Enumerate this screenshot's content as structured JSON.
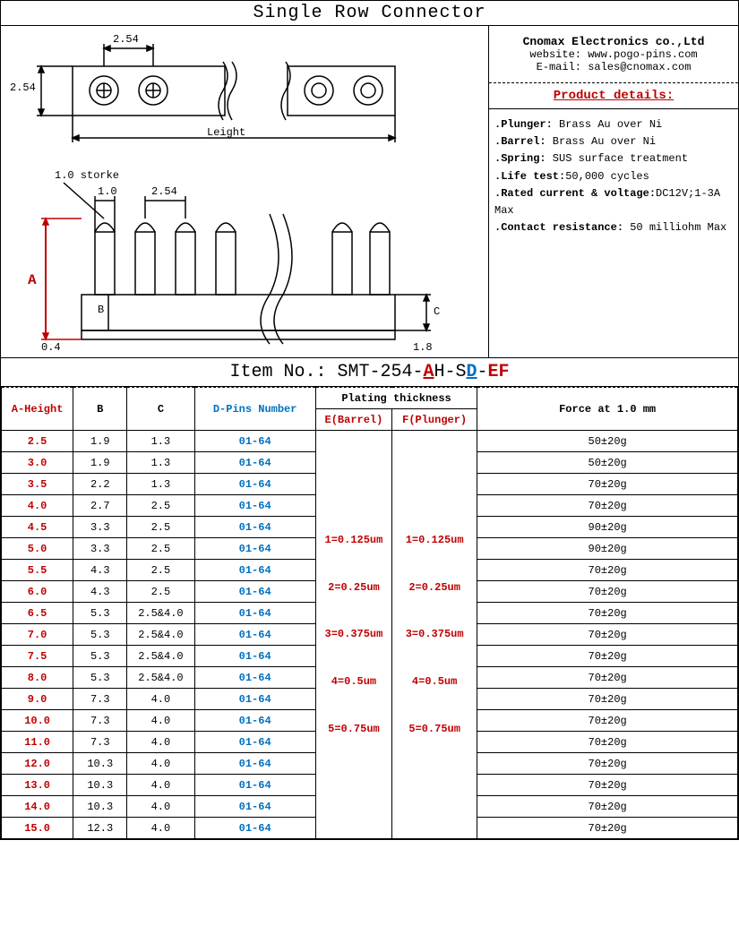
{
  "title": "Single Row Connector",
  "company": {
    "name": "Cnomax Electronics co.,Ltd",
    "website_label": "website:",
    "website": "www.pogo-pins.com",
    "email_label": "E-mail:",
    "email": "sales@cnomax.com"
  },
  "details_header": "Product details:",
  "details": [
    {
      "label": ".Plunger:",
      "value": " Brass Au over Ni"
    },
    {
      "label": ".Barrel:",
      "value": " Brass Au over Ni"
    },
    {
      "label": ".Spring:",
      "value": " SUS surface treatment"
    },
    {
      "label": ".Life test:",
      "value": "50,000 cycles"
    },
    {
      "label": ".Rated current & voltage:",
      "value": "DC12V;1-3A Max"
    },
    {
      "label": ".Contact resistance:",
      "value": " 50 milliohm Max"
    }
  ],
  "item_no": {
    "label": "Item No.:  ",
    "prefix": "SMT-254-",
    "seg_a": "A",
    "mid1": "H-S",
    "seg_d": "D",
    "mid2": "-",
    "seg_ef": "EF"
  },
  "drawing": {
    "dim_254_h": "2.54",
    "dim_254_v": "2.54",
    "length_label": "Leight",
    "stroke_label": "1.0 storke",
    "dim_10": "1.0",
    "dim_254_b": "2.54",
    "label_a": "A",
    "label_b": "B",
    "label_c": "C",
    "dim_04": "0.4",
    "dim_18": "1.8"
  },
  "table": {
    "headers": {
      "a": "A-Height",
      "b": "B",
      "c": "C",
      "d": "D-Pins Number",
      "plating": "Plating thickness",
      "e": "E(Barrel)",
      "f": "F(Plunger)",
      "force": "Force at 1.0 mm"
    },
    "plating_e": "1=0.125um\n\n2=0.25um\n\n3=0.375um\n\n4=0.5um\n\n5=0.75um",
    "plating_f": "1=0.125um\n\n2=0.25um\n\n3=0.375um\n\n4=0.5um\n\n5=0.75um",
    "rows": [
      {
        "a": "2.5",
        "b": "1.9",
        "c": "1.3",
        "d": "01-64",
        "force": "50±20g"
      },
      {
        "a": "3.0",
        "b": "1.9",
        "c": "1.3",
        "d": "01-64",
        "force": "50±20g"
      },
      {
        "a": "3.5",
        "b": "2.2",
        "c": "1.3",
        "d": "01-64",
        "force": "70±20g"
      },
      {
        "a": "4.0",
        "b": "2.7",
        "c": "2.5",
        "d": "01-64",
        "force": "70±20g"
      },
      {
        "a": "4.5",
        "b": "3.3",
        "c": "2.5",
        "d": "01-64",
        "force": "90±20g"
      },
      {
        "a": "5.0",
        "b": "3.3",
        "c": "2.5",
        "d": "01-64",
        "force": "90±20g"
      },
      {
        "a": "5.5",
        "b": "4.3",
        "c": "2.5",
        "d": "01-64",
        "force": "70±20g"
      },
      {
        "a": "6.0",
        "b": "4.3",
        "c": "2.5",
        "d": "01-64",
        "force": "70±20g"
      },
      {
        "a": "6.5",
        "b": "5.3",
        "c": "2.5&4.0",
        "d": "01-64",
        "force": "70±20g"
      },
      {
        "a": "7.0",
        "b": "5.3",
        "c": "2.5&4.0",
        "d": "01-64",
        "force": "70±20g"
      },
      {
        "a": "7.5",
        "b": "5.3",
        "c": "2.5&4.0",
        "d": "01-64",
        "force": "70±20g"
      },
      {
        "a": "8.0",
        "b": "5.3",
        "c": "2.5&4.0",
        "d": "01-64",
        "force": "70±20g"
      },
      {
        "a": "9.0",
        "b": "7.3",
        "c": "4.0",
        "d": "01-64",
        "force": "70±20g"
      },
      {
        "a": "10.0",
        "b": "7.3",
        "c": "4.0",
        "d": "01-64",
        "force": "70±20g"
      },
      {
        "a": "11.0",
        "b": "7.3",
        "c": "4.0",
        "d": "01-64",
        "force": "70±20g"
      },
      {
        "a": "12.0",
        "b": "10.3",
        "c": "4.0",
        "d": "01-64",
        "force": "70±20g"
      },
      {
        "a": "13.0",
        "b": "10.3",
        "c": "4.0",
        "d": "01-64",
        "force": "70±20g"
      },
      {
        "a": "14.0",
        "b": "10.3",
        "c": "4.0",
        "d": "01-64",
        "force": "70±20g"
      },
      {
        "a": "15.0",
        "b": "12.3",
        "c": "4.0",
        "d": "01-64",
        "force": "70±20g"
      }
    ],
    "col_widths": {
      "a": 80,
      "b": 60,
      "c": 75,
      "d": 135,
      "e": 85,
      "f": 95,
      "force": 290
    }
  },
  "colors": {
    "red": "#c00000",
    "blue": "#0070c0",
    "black": "#000000"
  }
}
